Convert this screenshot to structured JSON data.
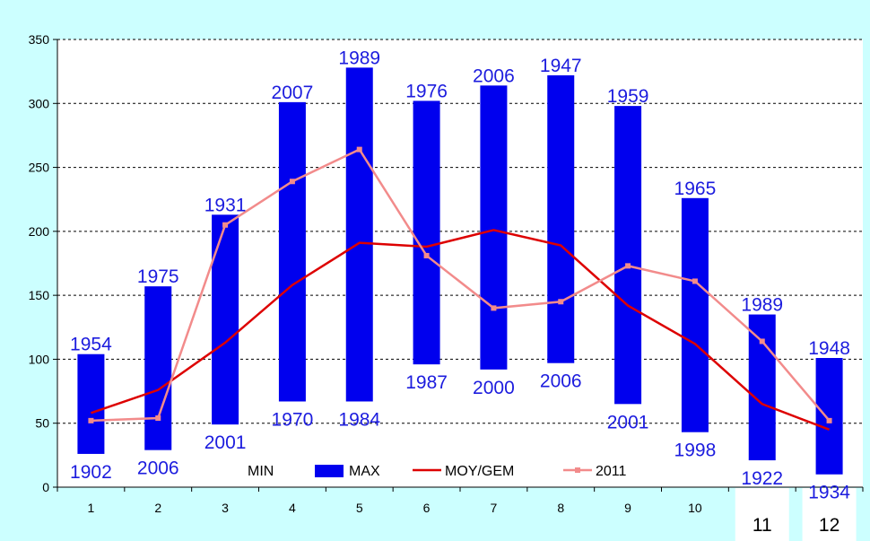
{
  "chart_data": {
    "type": "bar",
    "categories": [
      "1",
      "2",
      "3",
      "4",
      "5",
      "6",
      "7",
      "8",
      "9",
      "10",
      "11",
      "12"
    ],
    "ylim": [
      0,
      350
    ],
    "yticks": [
      0,
      50,
      100,
      150,
      200,
      250,
      300,
      350
    ],
    "grid": true,
    "series": [
      {
        "name": "MIN",
        "kind": "range-bottom",
        "values": [
          26,
          29,
          49,
          67,
          67,
          96,
          92,
          97,
          65,
          43,
          21,
          10
        ]
      },
      {
        "name": "MAX",
        "kind": "range-top",
        "values": [
          104,
          157,
          213,
          301,
          328,
          302,
          314,
          322,
          298,
          226,
          135,
          101
        ]
      },
      {
        "name": "MOY/GEM",
        "kind": "line",
        "values": [
          58,
          76,
          113,
          158,
          191,
          188,
          201,
          189,
          142,
          112,
          65,
          45
        ]
      },
      {
        "name": "2011",
        "kind": "line-markers",
        "values": [
          52,
          54,
          205,
          239,
          264,
          181,
          140,
          145,
          173,
          161,
          114,
          52
        ]
      }
    ],
    "max_years": [
      "1954",
      "1975",
      "1931",
      "2007",
      "1989",
      "1976",
      "2006",
      "1947",
      "1959",
      "1965",
      "1989",
      "1948"
    ],
    "min_years": [
      "1902",
      "2006",
      "2001",
      "1970",
      "1984",
      "1987",
      "2000",
      "2006",
      "2001",
      "1998",
      "1922",
      "1934"
    ],
    "legend": [
      "MIN",
      "MAX",
      "MOY/GEM",
      "2011"
    ],
    "colors": {
      "background": "#ccffff",
      "plot_background": "#ffffff",
      "max_bar": "#0000ee",
      "year_label": "#1c1cde",
      "moy": "#dd0000",
      "y2011": "#f28b8b",
      "grid": "#000000"
    }
  }
}
